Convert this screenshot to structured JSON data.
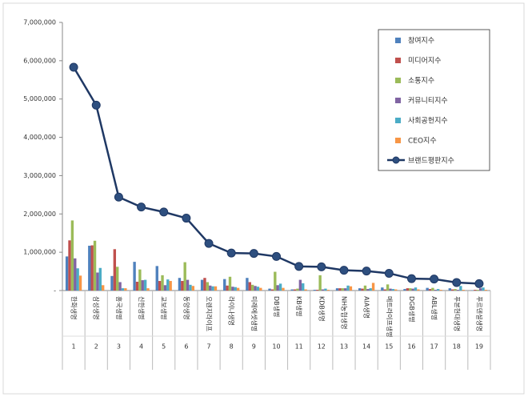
{
  "chart_data": {
    "type": "bar",
    "categories": [
      "한화생명",
      "삼성생명",
      "흥국생명",
      "신한생명",
      "교보생명",
      "동양생명",
      "오렌지라이프",
      "라이나생명",
      "미래에셋생명",
      "DB생명",
      "KB생명",
      "KDB생명",
      "NH농협생명",
      "AIA생명",
      "메트라이프생명",
      "DGB생명",
      "ABL생명",
      "푸본현대생명",
      "푸르덴셜생명"
    ],
    "ranks": [
      1,
      2,
      3,
      4,
      5,
      6,
      7,
      8,
      9,
      10,
      11,
      12,
      13,
      14,
      15,
      16,
      17,
      18,
      19
    ],
    "series": [
      {
        "name": "참여지수",
        "color": "#4f81bd",
        "values": [
          890000,
          1170000,
          380000,
          750000,
          640000,
          330000,
          280000,
          300000,
          330000,
          50000,
          30000,
          20000,
          60000,
          60000,
          80000,
          40000,
          70000,
          60000,
          10000
        ]
      },
      {
        "name": "미디어지수",
        "color": "#c0504d",
        "values": [
          1310000,
          1180000,
          1080000,
          230000,
          250000,
          250000,
          330000,
          130000,
          220000,
          30000,
          30000,
          20000,
          60000,
          50000,
          30000,
          60000,
          40000,
          30000,
          20000
        ]
      },
      {
        "name": "소통지수",
        "color": "#9bbb59",
        "values": [
          1830000,
          1300000,
          620000,
          550000,
          400000,
          740000,
          220000,
          360000,
          150000,
          490000,
          50000,
          400000,
          60000,
          130000,
          160000,
          60000,
          70000,
          40000,
          20000
        ]
      },
      {
        "name": "커뮤니티지수",
        "color": "#8064a2",
        "values": [
          840000,
          470000,
          220000,
          270000,
          140000,
          280000,
          130000,
          100000,
          120000,
          140000,
          280000,
          30000,
          60000,
          40000,
          50000,
          50000,
          20000,
          20000,
          60000
        ]
      },
      {
        "name": "사회공헌지수",
        "color": "#4bacc6",
        "values": [
          580000,
          590000,
          60000,
          280000,
          290000,
          150000,
          110000,
          90000,
          100000,
          180000,
          190000,
          50000,
          130000,
          60000,
          40000,
          80000,
          40000,
          120000,
          80000
        ]
      },
      {
        "name": "CEO지수",
        "color": "#f79646",
        "values": [
          390000,
          140000,
          60000,
          60000,
          250000,
          120000,
          110000,
          70000,
          70000,
          70000,
          30000,
          20000,
          110000,
          200000,
          30000,
          30000,
          20000,
          20000,
          20000
        ]
      }
    ],
    "line_series": {
      "name": "브랜드평판지수",
      "color": "#1f3864",
      "values": [
        5830000,
        4840000,
        2440000,
        2180000,
        2050000,
        1890000,
        1230000,
        980000,
        970000,
        890000,
        630000,
        620000,
        530000,
        510000,
        450000,
        310000,
        300000,
        210000,
        180000
      ]
    },
    "ylim": [
      0,
      7000000
    ],
    "yticks": [
      {
        "value": 0,
        "label": "-"
      },
      {
        "value": 1000000,
        "label": "1,000,000"
      },
      {
        "value": 2000000,
        "label": "2,000,000"
      },
      {
        "value": 3000000,
        "label": "3,000,000"
      },
      {
        "value": 4000000,
        "label": "4,000,000"
      },
      {
        "value": 5000000,
        "label": "5,000,000"
      },
      {
        "value": 6000000,
        "label": "6,000,000"
      },
      {
        "value": 7000000,
        "label": "7,000,000"
      }
    ]
  }
}
